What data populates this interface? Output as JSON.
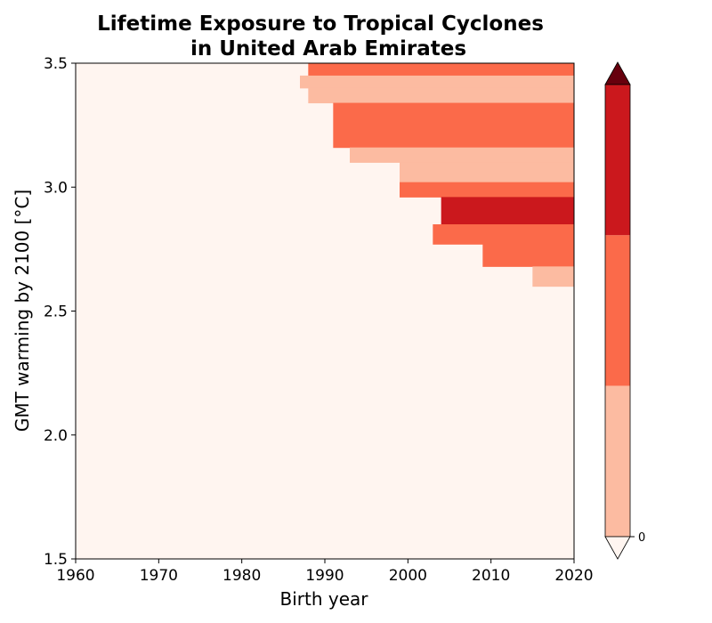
{
  "chart_data": {
    "type": "heatmap",
    "title_line1": "Lifetime Exposure to Tropical Cyclones",
    "title_line2": "in United Arab Emirates",
    "xlabel": "Birth year",
    "ylabel": "GMT warming by 2100 [°C]",
    "xlim": [
      1960,
      2020
    ],
    "ylim": [
      1.5,
      3.5
    ],
    "xticks": [
      "1960",
      "1970",
      "1980",
      "1990",
      "2000",
      "2010",
      "2020"
    ],
    "yticks": [
      "1.5",
      "2.0",
      "2.5",
      "3.0",
      "3.5"
    ],
    "grid": false,
    "colorbar": {
      "tick_label": "0",
      "colors": [
        "#fff5f0",
        "#fcbba1",
        "#fb6a4a",
        "#cb181d",
        "#67000d"
      ]
    },
    "bands": [
      {
        "y_low": 3.45,
        "y_high": 3.5,
        "level": 2,
        "x_start": 1988
      },
      {
        "y_low": 3.4,
        "y_high": 3.45,
        "level": 1,
        "x_start": 1987
      },
      {
        "y_low": 3.34,
        "y_high": 3.4,
        "level": 1,
        "x_start": 1988
      },
      {
        "y_low": 3.16,
        "y_high": 3.34,
        "level": 2,
        "x_start": 1991
      },
      {
        "y_low": 3.1,
        "y_high": 3.16,
        "level": 1,
        "x_start": 1993
      },
      {
        "y_low": 3.02,
        "y_high": 3.1,
        "level": 1,
        "x_start": 1999
      },
      {
        "y_low": 2.96,
        "y_high": 3.02,
        "level": 2,
        "x_start": 1999
      },
      {
        "y_low": 2.85,
        "y_high": 2.96,
        "level": 3,
        "x_start": 2004
      },
      {
        "y_low": 2.77,
        "y_high": 2.85,
        "level": 2,
        "x_start": 2003
      },
      {
        "y_low": 2.68,
        "y_high": 2.77,
        "level": 2,
        "x_start": 2009
      },
      {
        "y_low": 2.6,
        "y_high": 2.68,
        "level": 1,
        "x_start": 2015
      }
    ]
  }
}
